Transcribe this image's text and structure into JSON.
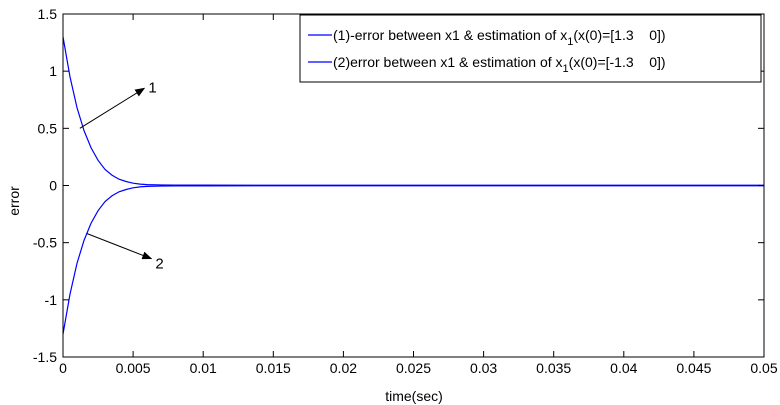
{
  "chart_data": {
    "type": "line",
    "title": "",
    "xlabel": "time(sec)",
    "ylabel": "error",
    "xlim": [
      0,
      0.05
    ],
    "ylim": [
      -1.5,
      1.5
    ],
    "grid": false,
    "legend_position": "top-right",
    "x_ticks": [
      0,
      0.005,
      0.01,
      0.015,
      0.02,
      0.025,
      0.03,
      0.035,
      0.04,
      0.045,
      0.05
    ],
    "x_tick_labels": [
      "0",
      "0.005",
      "0.01",
      "0.015",
      "0.02",
      "0.025",
      "0.03",
      "0.035",
      "0.04",
      "0.045",
      "0.05"
    ],
    "y_ticks": [
      -1.5,
      -1,
      -0.5,
      0,
      0.5,
      1,
      1.5
    ],
    "y_tick_labels": [
      "-1.5",
      "-1",
      "-0.5",
      "0",
      "0.5",
      "1",
      "1.5"
    ],
    "legend": [
      {
        "prefix": "(1)-error between x1 & estimation of x",
        "sub": "1",
        "suffix": "(x(0)=[1.3    0])"
      },
      {
        "prefix": "(2)error between x1 & estimation of x",
        "sub": "1",
        "suffix": "(x(0)=[-1.3    0])"
      }
    ],
    "series": [
      {
        "name": "(1)-error between x1 & estimation of x1(x(0)=[1.3 0])",
        "color": "#0000ff",
        "x": [
          0,
          0.0005,
          0.001,
          0.0015,
          0.002,
          0.0025,
          0.003,
          0.0035,
          0.004,
          0.0045,
          0.005,
          0.0055,
          0.006,
          0.007,
          0.008,
          0.01,
          0.02,
          0.03,
          0.04,
          0.05
        ],
        "y": [
          1.3,
          0.95,
          0.68,
          0.48,
          0.33,
          0.22,
          0.14,
          0.09,
          0.055,
          0.035,
          0.02,
          0.012,
          0.008,
          0.005,
          0.004,
          0.003,
          0.002,
          0.002,
          0.002,
          0.002
        ]
      },
      {
        "name": "(2)error between x1 & estimation of x1(x(0)=[-1.3 0])",
        "color": "#0000ff",
        "x": [
          0,
          0.0005,
          0.001,
          0.0015,
          0.002,
          0.0025,
          0.003,
          0.0035,
          0.004,
          0.0045,
          0.005,
          0.0055,
          0.006,
          0.007,
          0.008,
          0.01,
          0.02,
          0.03,
          0.04,
          0.05
        ],
        "y": [
          -1.3,
          -0.95,
          -0.68,
          -0.48,
          -0.33,
          -0.22,
          -0.14,
          -0.09,
          -0.055,
          -0.035,
          -0.02,
          -0.012,
          -0.008,
          -0.005,
          -0.004,
          -0.003,
          -0.002,
          -0.002,
          -0.002,
          -0.002
        ]
      }
    ],
    "annotations": [
      {
        "label": "1",
        "from": [
          0.0012,
          0.5
        ],
        "to": [
          0.0058,
          0.85
        ]
      },
      {
        "label": "2",
        "from": [
          0.0017,
          -0.42
        ],
        "to": [
          0.0063,
          -0.64
        ]
      }
    ]
  }
}
